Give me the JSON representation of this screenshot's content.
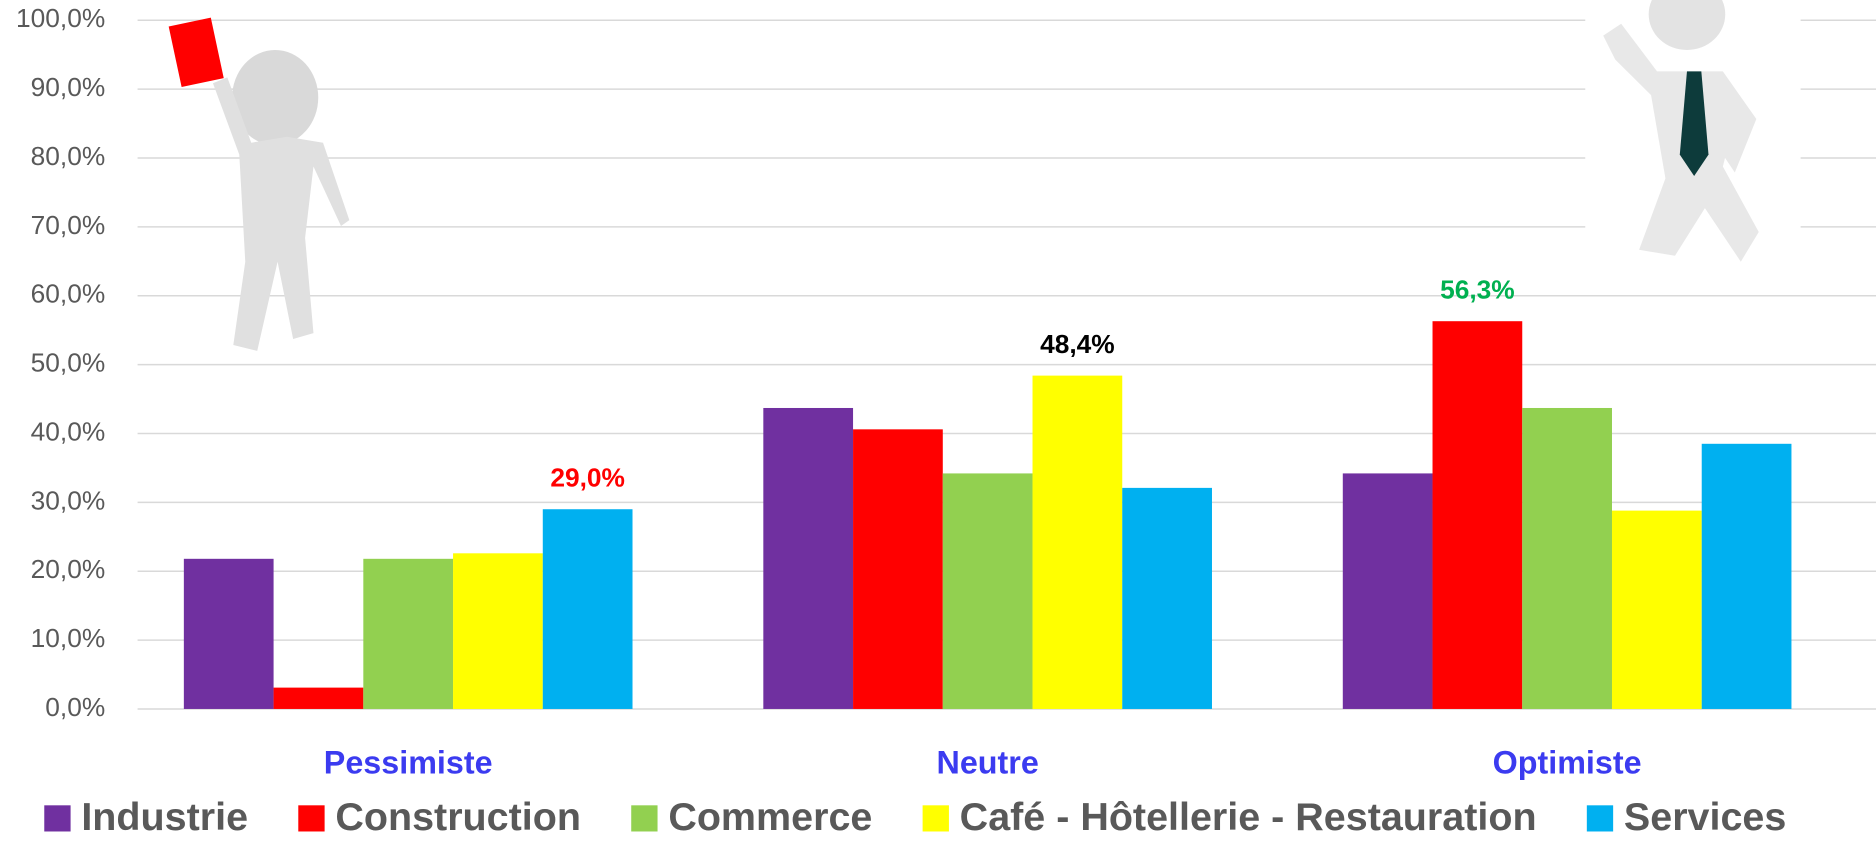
{
  "chart_data": {
    "type": "bar",
    "categories": [
      "Pessimiste",
      "Neutre",
      "Optimiste"
    ],
    "series": [
      {
        "name": "Industrie",
        "color": "#7030a0",
        "values": [
          21.8,
          43.7,
          34.2
        ]
      },
      {
        "name": "Construction",
        "color": "#ff0000",
        "values": [
          3.1,
          40.6,
          56.3
        ],
        "value_labels": [
          null,
          null,
          "56,3%"
        ],
        "value_label_colors": [
          null,
          null,
          "#00b050"
        ]
      },
      {
        "name": "Commerce",
        "color": "#92d050",
        "values": [
          21.8,
          34.2,
          43.7
        ]
      },
      {
        "name": "Café - Hôtellerie - Restauration",
        "color": "#ffff00",
        "values": [
          22.6,
          48.4,
          28.8
        ],
        "value_labels": [
          null,
          "48,4%",
          null
        ],
        "value_label_colors": [
          null,
          "#000000",
          null
        ]
      },
      {
        "name": "Services",
        "color": "#00b0f0",
        "values": [
          29.0,
          32.1,
          38.5
        ],
        "value_labels": [
          "29,0%",
          null,
          null
        ],
        "value_label_colors": [
          "#ff0000",
          null,
          null
        ]
      }
    ],
    "ylim": [
      0,
      100
    ],
    "yticks": [
      {
        "value": 0,
        "label": "0,0%"
      },
      {
        "value": 10,
        "label": "10,0%"
      },
      {
        "value": 20,
        "label": "20,0%"
      },
      {
        "value": 30,
        "label": "30,0%"
      },
      {
        "value": 40,
        "label": "40,0%"
      },
      {
        "value": 50,
        "label": "50,0%"
      },
      {
        "value": 60,
        "label": "60,0%"
      },
      {
        "value": 70,
        "label": "70,0%"
      },
      {
        "value": 80,
        "label": "80,0%"
      },
      {
        "value": 90,
        "label": "90,0%"
      },
      {
        "value": 100,
        "label": "100,0%"
      }
    ],
    "grid": true,
    "legend": "bottom"
  }
}
